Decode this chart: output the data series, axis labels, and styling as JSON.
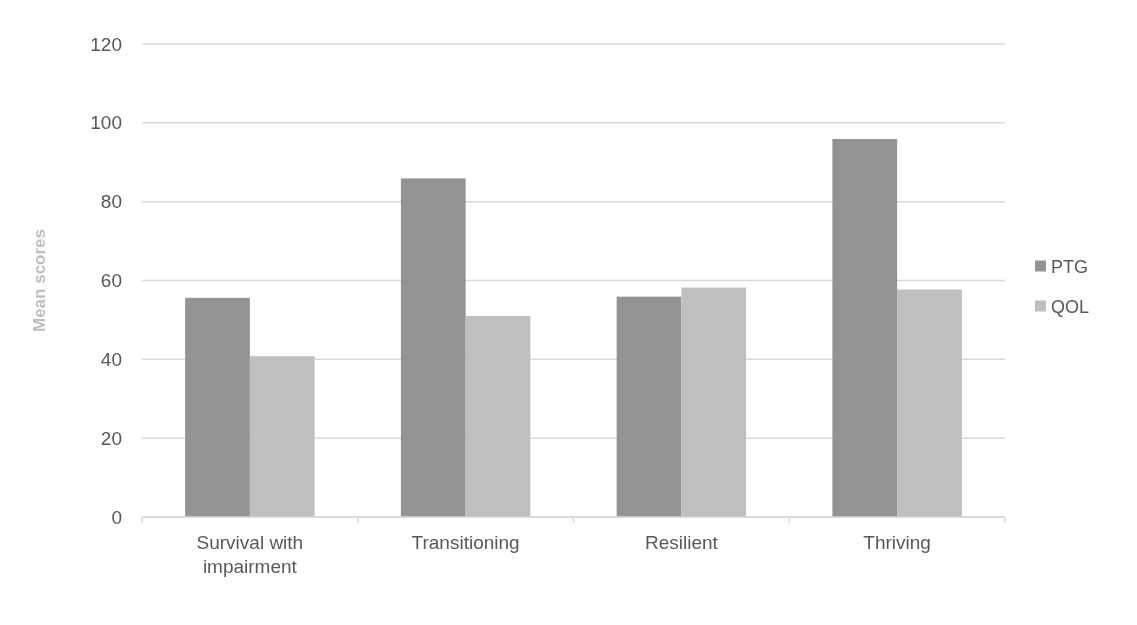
{
  "chart_data": {
    "type": "bar",
    "ylabel": "Mean scores",
    "categories": [
      "Survival with impairment",
      "Transitioning",
      "Resilient",
      "Thriving"
    ],
    "series": [
      {
        "name": "PTG",
        "color": "#939393",
        "values": [
          55.6,
          85.9,
          55.9,
          95.9
        ]
      },
      {
        "name": "QOL",
        "color": "#bfbfbf",
        "values": [
          40.8,
          51.0,
          58.2,
          57.7
        ]
      }
    ],
    "ylim": [
      0,
      120
    ],
    "yticks": [
      0,
      20,
      40,
      60,
      80,
      100,
      120
    ],
    "grid": "y",
    "legend": "right"
  }
}
